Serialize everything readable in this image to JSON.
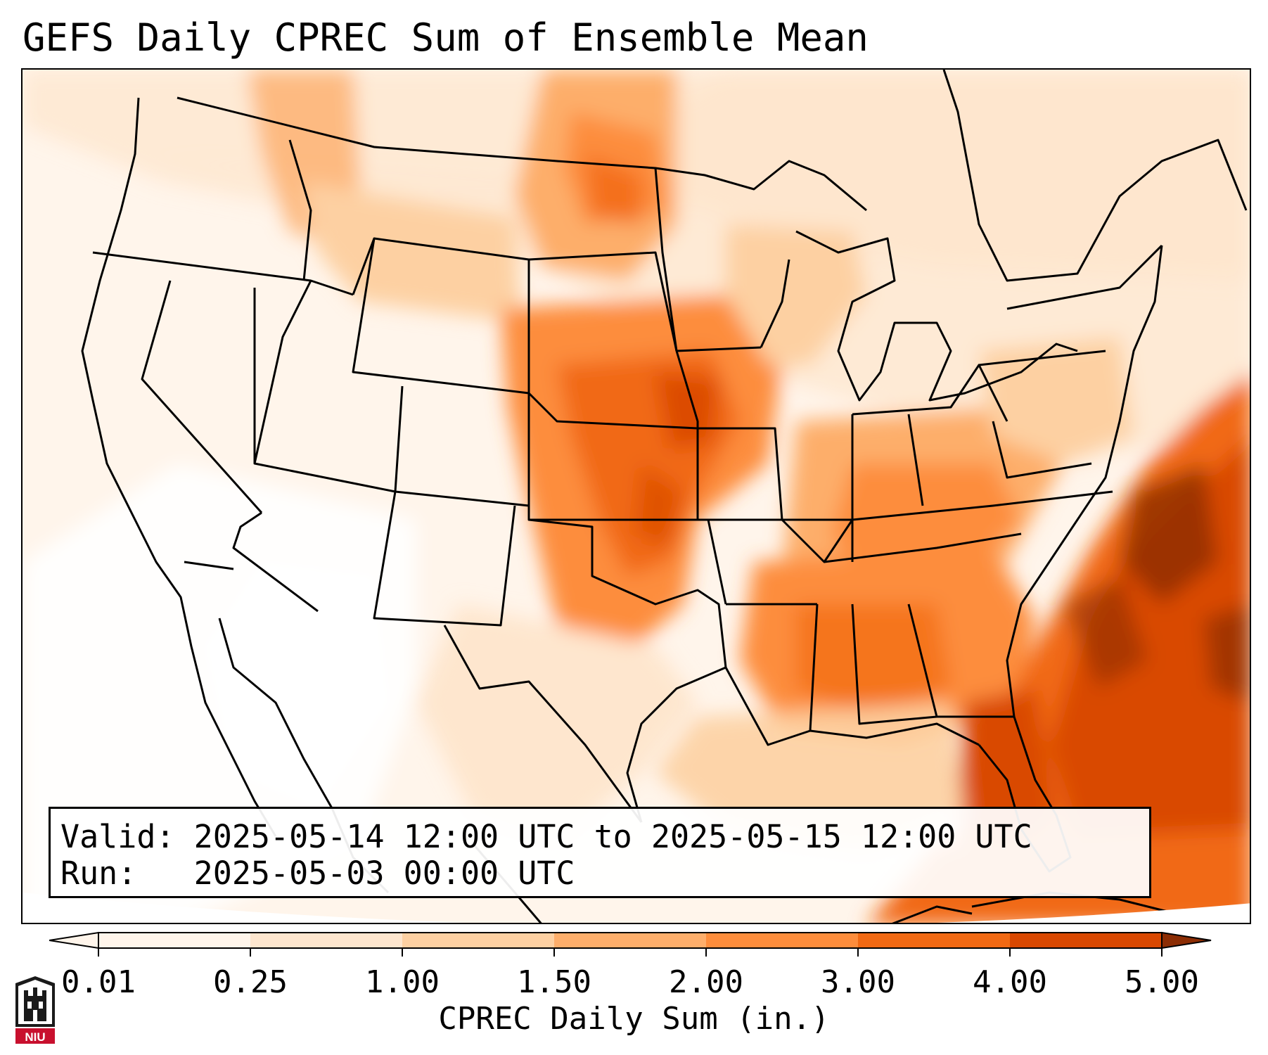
{
  "title": "GEFS Daily CPREC Sum of Ensemble Mean",
  "valid_box": {
    "valid_line": "Valid: 2025-05-14 12:00 UTC to 2025-05-15 12:00 UTC",
    "run_line": "Run:   2025-05-03 00:00 UTC"
  },
  "colorbar": {
    "label": "CPREC Daily Sum (in.)",
    "ticks": [
      "0.01",
      "0.25",
      "1.00",
      "1.50",
      "2.00",
      "3.00",
      "4.00",
      "5.00"
    ],
    "colors": [
      "#fff5eb",
      "#fee6ce",
      "#fdd0a2",
      "#fdae6b",
      "#fd8d3c",
      "#f16913",
      "#d94801",
      "#8c2d04"
    ],
    "extend": "both"
  },
  "legend_colors": {
    "border": "#000000",
    "background": "#ffffff"
  },
  "logo": {
    "text": "NIU",
    "icon": "niu-castle-icon"
  }
}
